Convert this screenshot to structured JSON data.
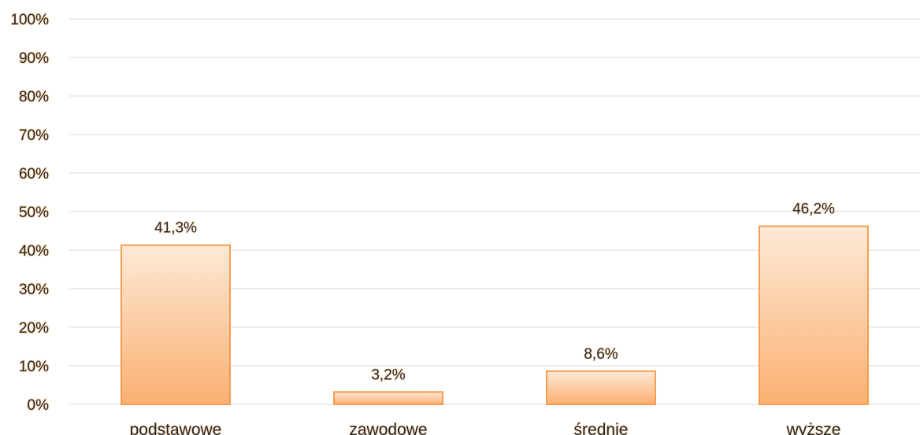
{
  "chart_data": {
    "type": "bar",
    "categories": [
      "podstawowe",
      "zawodowe",
      "średnie",
      "wyższe"
    ],
    "values": [
      41.3,
      3.2,
      8.6,
      46.2
    ],
    "value_labels": [
      "41,3%",
      "3,2%",
      "8,6%",
      "46,2%"
    ],
    "ylim": [
      0,
      100
    ],
    "yticks": [
      0,
      10,
      20,
      30,
      40,
      50,
      60,
      70,
      80,
      90,
      100
    ],
    "ytick_labels": [
      "0%",
      "10%",
      "20%",
      "30%",
      "40%",
      "50%",
      "60%",
      "70%",
      "80%",
      "90%",
      "100%"
    ],
    "title": "",
    "xlabel": "",
    "ylabel": "",
    "grid": true,
    "legend": "none",
    "colors": {
      "bar_top": "#fde9d6",
      "bar_bottom": "#fbb072",
      "bar_border": "#f59d52",
      "grid": "#d9d9d9",
      "text": "#262626"
    }
  }
}
